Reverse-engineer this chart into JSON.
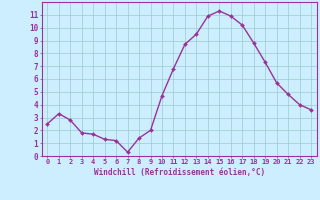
{
  "x": [
    0,
    1,
    2,
    3,
    4,
    5,
    6,
    7,
    8,
    9,
    10,
    11,
    12,
    13,
    14,
    15,
    16,
    17,
    18,
    19,
    20,
    21,
    22,
    23
  ],
  "y": [
    2.5,
    3.3,
    2.8,
    1.8,
    1.7,
    1.3,
    1.2,
    0.3,
    1.4,
    2.0,
    4.7,
    6.8,
    8.7,
    9.5,
    10.9,
    11.3,
    10.9,
    10.2,
    8.8,
    7.3,
    5.7,
    4.8,
    4.0,
    3.6
  ],
  "line_color": "#993399",
  "marker": "D",
  "marker_size": 2.0,
  "bg_color": "#cceeff",
  "grid_color": "#99cccc",
  "xlabel": "Windchill (Refroidissement éolien,°C)",
  "xlim": [
    -0.5,
    23.5
  ],
  "ylim": [
    0,
    12
  ],
  "xticks": [
    0,
    1,
    2,
    3,
    4,
    5,
    6,
    7,
    8,
    9,
    10,
    11,
    12,
    13,
    14,
    15,
    16,
    17,
    18,
    19,
    20,
    21,
    22,
    23
  ],
  "yticks": [
    0,
    1,
    2,
    3,
    4,
    5,
    6,
    7,
    8,
    9,
    10,
    11
  ],
  "tick_color": "#993399",
  "label_color": "#993399",
  "spine_color": "#993399",
  "tick_fontsize": 5.0,
  "xlabel_fontsize": 5.5,
  "linewidth": 1.0
}
